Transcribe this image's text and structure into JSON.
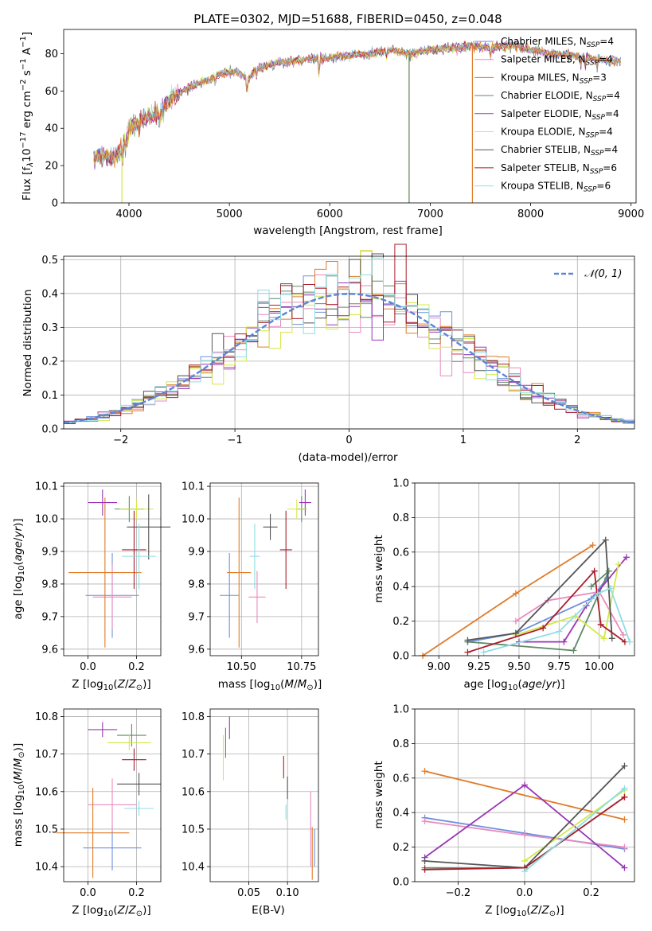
{
  "figure_title": "PLATE=0302, MJD=51688, FIBERID=0450, z=0.048",
  "model_colors": [
    "#6f8fdc",
    "#e98ac0",
    "#e07b28",
    "#5f8a6a",
    "#9a35b5",
    "#d4e84a",
    "#555555",
    "#aa1e2a",
    "#8fdde3"
  ],
  "chart_data": [
    {
      "type": "line",
      "name": "spectrum",
      "xlabel": "wavelength [Angstrom, rest frame]",
      "ylabel": "Flux [fλ10⁻¹⁷ erg cm⁻² s⁻¹ A⁻¹]",
      "xlim": [
        3350,
        9050
      ],
      "ylim": [
        0,
        93
      ],
      "xticks": [
        4000,
        5000,
        6000,
        7000,
        8000,
        9000
      ],
      "yticks": [
        0,
        20,
        40,
        60,
        80
      ],
      "grid": false,
      "legend_position": "right",
      "continuum": [
        [
          3650,
          24
        ],
        [
          3750,
          26
        ],
        [
          3850,
          24
        ],
        [
          3950,
          31
        ],
        [
          4000,
          40
        ],
        [
          4100,
          44
        ],
        [
          4200,
          46
        ],
        [
          4300,
          48
        ],
        [
          4400,
          55
        ],
        [
          4500,
          59
        ],
        [
          4600,
          62
        ],
        [
          4700,
          64
        ],
        [
          4800,
          66
        ],
        [
          4900,
          69
        ],
        [
          5000,
          70
        ],
        [
          5100,
          70
        ],
        [
          5200,
          66
        ],
        [
          5250,
          71
        ],
        [
          5400,
          74
        ],
        [
          5600,
          76
        ],
        [
          5800,
          77
        ],
        [
          6000,
          78
        ],
        [
          6200,
          79
        ],
        [
          6400,
          80
        ],
        [
          6600,
          82
        ],
        [
          6800,
          80
        ],
        [
          7000,
          82
        ],
        [
          7200,
          83
        ],
        [
          7400,
          84
        ],
        [
          7600,
          83
        ],
        [
          7800,
          85
        ],
        [
          8000,
          82
        ],
        [
          8200,
          80
        ],
        [
          8400,
          79
        ],
        [
          8600,
          78
        ],
        [
          8800,
          76
        ],
        [
          8900,
          76
        ]
      ],
      "absorption_lines": [
        [
          3934,
          8
        ],
        [
          3969,
          7
        ],
        [
          4102,
          5
        ],
        [
          4304,
          6
        ],
        [
          4341,
          4
        ],
        [
          4861,
          5
        ],
        [
          5175,
          10
        ],
        [
          5270,
          4
        ],
        [
          5894,
          11
        ],
        [
          6563,
          3
        ],
        [
          7600,
          4
        ],
        [
          8498,
          6
        ],
        [
          8542,
          7
        ],
        [
          8662,
          6
        ]
      ],
      "series": [
        {
          "name": "Chabrier MILES, N_SSP=4",
          "legend_main": "Chabrier MILES, N",
          "legend_sub": "SSP",
          "legend_tail": "=4"
        },
        {
          "name": "Salpeter MILES, N_SSP=4",
          "legend_main": "Salpeter MILES, N",
          "legend_sub": "SSP",
          "legend_tail": "=4"
        },
        {
          "name": "Kroupa MILES, N_SSP=3",
          "legend_main": "Kroupa MILES, N",
          "legend_sub": "SSP",
          "legend_tail": "=3"
        },
        {
          "name": "Chabrier ELODIE, N_SSP=4",
          "legend_main": "Chabrier ELODIE, N",
          "legend_sub": "SSP",
          "legend_tail": "=4"
        },
        {
          "name": "Salpeter ELODIE, N_SSP=4",
          "legend_main": "Salpeter ELODIE, N",
          "legend_sub": "SSP",
          "legend_tail": "=4"
        },
        {
          "name": "Kroupa ELODIE, N_SSP=4",
          "legend_main": "Kroupa ELODIE, N",
          "legend_sub": "SSP",
          "legend_tail": "=4"
        },
        {
          "name": "Chabrier STELIB, N_SSP=4",
          "legend_main": "Chabrier STELIB, N",
          "legend_sub": "SSP",
          "legend_tail": "=4"
        },
        {
          "name": "Salpeter STELIB, N_SSP=6",
          "legend_main": "Salpeter STELIB, N",
          "legend_sub": "SSP",
          "legend_tail": "=6"
        },
        {
          "name": "Kroupa STELIB, N_SSP=6",
          "legend_main": "Kroupa STELIB, N",
          "legend_sub": "SSP",
          "legend_tail": "=6"
        }
      ],
      "dropouts": [
        {
          "x": 3930,
          "color_index": 5
        },
        {
          "x": 6790,
          "color_index": 5
        },
        {
          "x": 7420,
          "color_index": 2
        },
        {
          "x": 6790,
          "color_index": 3
        }
      ]
    },
    {
      "type": "histogram",
      "name": "residuals",
      "xlabel": "(data-model)/error",
      "ylabel": "Normed distribution",
      "xlim": [
        -2.5,
        2.5
      ],
      "ylim": [
        0,
        0.51
      ],
      "xticks": [
        -2,
        -1,
        0,
        1,
        2
      ],
      "yticks": [
        0,
        0.1,
        0.2,
        0.3,
        0.4,
        0.5
      ],
      "grid": true,
      "legend": "𝒩(0, 1)",
      "legend_position": "top-right",
      "bin_width": 0.1,
      "reference": "normal(0,1)"
    },
    {
      "type": "scatter",
      "name": "age-vs-Z",
      "xlabel": "Z [log₁₀(Z/Z⊙)]",
      "ylabel": "age  [log₁₀(age/yr)]",
      "xlim": [
        -0.1,
        0.3
      ],
      "ylim": [
        9.58,
        10.11
      ],
      "xticks": [
        0.0,
        0.2
      ],
      "yticks": [
        9.6,
        9.7,
        9.8,
        9.9,
        10.0,
        10.1
      ],
      "grid": true,
      "points": [
        {
          "x": 0.1,
          "y": 9.765,
          "xerr": 0.11,
          "yerr": 0.13,
          "color_index": 0
        },
        {
          "x": 0.1,
          "y": 9.76,
          "xerr": 0.08,
          "yerr": 0.1,
          "color_index": 1
        },
        {
          "x": 0.07,
          "y": 9.835,
          "xerr": 0.15,
          "yerr": 0.23,
          "color_index": 2
        },
        {
          "x": 0.17,
          "y": 10.03,
          "xerr": 0.06,
          "yerr": 0.04,
          "color_index": 3
        },
        {
          "x": 0.06,
          "y": 10.05,
          "xerr": 0.06,
          "yerr": 0.04,
          "color_index": 4
        },
        {
          "x": 0.2,
          "y": 10.03,
          "xerr": 0.07,
          "yerr": 0.03,
          "color_index": 5
        },
        {
          "x": 0.25,
          "y": 9.975,
          "xerr": 0.09,
          "yerr": 0.1,
          "color_index": 6
        },
        {
          "x": 0.19,
          "y": 9.905,
          "xerr": 0.05,
          "yerr": 0.12,
          "color_index": 7
        },
        {
          "x": 0.21,
          "y": 9.885,
          "xerr": 0.07,
          "yerr": 0.1,
          "color_index": 8
        }
      ]
    },
    {
      "type": "scatter",
      "name": "age-vs-mass",
      "xlabel": "mass [log₁₀(M/M⊙)]",
      "ylabel": "",
      "xlim": [
        10.37,
        10.82
      ],
      "ylim": [
        9.58,
        10.11
      ],
      "xticks": [
        10.5,
        10.75
      ],
      "yticks": [
        9.6,
        9.7,
        9.8,
        9.9,
        10.0,
        10.1
      ],
      "grid": true,
      "points": [
        {
          "x": 10.45,
          "y": 9.765,
          "xerr": 0.04,
          "yerr": 0.13,
          "color_index": 0
        },
        {
          "x": 10.565,
          "y": 9.76,
          "xerr": 0.035,
          "yerr": 0.08,
          "color_index": 1
        },
        {
          "x": 10.49,
          "y": 9.835,
          "xerr": 0.05,
          "yerr": 0.23,
          "color_index": 2
        },
        {
          "x": 10.75,
          "y": 10.03,
          "xerr": 0.02,
          "yerr": 0.04,
          "color_index": 3
        },
        {
          "x": 10.765,
          "y": 10.05,
          "xerr": 0.025,
          "yerr": 0.04,
          "color_index": 4
        },
        {
          "x": 10.73,
          "y": 10.03,
          "xerr": 0.04,
          "yerr": 0.03,
          "color_index": 5
        },
        {
          "x": 10.62,
          "y": 9.975,
          "xerr": 0.03,
          "yerr": 0.04,
          "color_index": 6
        },
        {
          "x": 10.685,
          "y": 9.905,
          "xerr": 0.025,
          "yerr": 0.12,
          "color_index": 7
        },
        {
          "x": 10.555,
          "y": 9.885,
          "xerr": 0.02,
          "yerr": 0.1,
          "color_index": 8
        }
      ]
    },
    {
      "type": "line",
      "name": "mass-weight-vs-age",
      "xlabel": "age  [log₁₀(age/yr)]",
      "ylabel": "mass weight",
      "xlim": [
        8.85,
        10.22
      ],
      "ylim": [
        0,
        1
      ],
      "xticks": [
        9.0,
        9.25,
        9.5,
        9.75,
        10.0
      ],
      "yticks": [
        0,
        0.2,
        0.4,
        0.6,
        0.8,
        1.0
      ],
      "grid": true,
      "series": [
        {
          "color_index": 0,
          "points": [
            [
              9.18,
              0.08
            ],
            [
              9.48,
              0.13
            ],
            [
              9.95,
              0.33
            ],
            [
              10.05,
              0.45
            ]
          ]
        },
        {
          "color_index": 1,
          "points": [
            [
              9.48,
              0.2
            ],
            [
              9.68,
              0.32
            ],
            [
              10.0,
              0.37
            ],
            [
              10.15,
              0.12
            ]
          ]
        },
        {
          "color_index": 2,
          "points": [
            [
              8.9,
              0.0
            ],
            [
              9.48,
              0.36
            ],
            [
              9.96,
              0.64
            ]
          ]
        },
        {
          "color_index": 3,
          "points": [
            [
              9.18,
              0.08
            ],
            [
              9.84,
              0.03
            ],
            [
              10.06,
              0.49
            ],
            [
              9.95,
              0.4
            ]
          ]
        },
        {
          "color_index": 4,
          "points": [
            [
              9.5,
              0.08
            ],
            [
              9.78,
              0.08
            ],
            [
              9.92,
              0.29
            ],
            [
              10.17,
              0.57
            ]
          ]
        },
        {
          "color_index": 5,
          "points": [
            [
              9.48,
              0.12
            ],
            [
              9.85,
              0.23
            ],
            [
              10.03,
              0.1
            ],
            [
              10.12,
              0.53
            ]
          ]
        },
        {
          "color_index": 6,
          "points": [
            [
              9.18,
              0.09
            ],
            [
              9.48,
              0.13
            ],
            [
              10.04,
              0.67
            ],
            [
              10.08,
              0.1
            ]
          ]
        },
        {
          "color_index": 7,
          "points": [
            [
              9.18,
              0.02
            ],
            [
              9.65,
              0.16
            ],
            [
              9.97,
              0.49
            ],
            [
              10.01,
              0.18
            ],
            [
              10.16,
              0.08
            ]
          ]
        },
        {
          "color_index": 8,
          "points": [
            [
              9.28,
              0.02
            ],
            [
              9.75,
              0.14
            ],
            [
              9.99,
              0.36
            ],
            [
              10.07,
              0.39
            ],
            [
              10.19,
              0.08
            ]
          ]
        }
      ]
    },
    {
      "type": "scatter",
      "name": "mass-vs-Z",
      "xlabel": "Z [log₁₀(Z/Z⊙)]",
      "ylabel": "mass [log₁₀(M/M⊙)]",
      "xlim": [
        -0.1,
        0.3
      ],
      "ylim": [
        10.36,
        10.82
      ],
      "xticks": [
        0.0,
        0.2
      ],
      "yticks": [
        10.4,
        10.5,
        10.6,
        10.7,
        10.8
      ],
      "grid": true,
      "points": [
        {
          "x": 0.1,
          "y": 10.45,
          "xerr": 0.12,
          "yerr": 0.06,
          "color_index": 0
        },
        {
          "x": 0.1,
          "y": 10.565,
          "xerr": 0.1,
          "yerr": 0.07,
          "color_index": 1
        },
        {
          "x": 0.02,
          "y": 10.49,
          "xerr": 0.15,
          "yerr": 0.12,
          "color_index": 2
        },
        {
          "x": 0.18,
          "y": 10.75,
          "xerr": 0.06,
          "yerr": 0.03,
          "color_index": 3
        },
        {
          "x": 0.06,
          "y": 10.765,
          "xerr": 0.06,
          "yerr": 0.02,
          "color_index": 4
        },
        {
          "x": 0.17,
          "y": 10.73,
          "xerr": 0.09,
          "yerr": 0.02,
          "color_index": 5
        },
        {
          "x": 0.21,
          "y": 10.62,
          "xerr": 0.09,
          "yerr": 0.03,
          "color_index": 6
        },
        {
          "x": 0.19,
          "y": 10.685,
          "xerr": 0.05,
          "yerr": 0.03,
          "color_index": 7
        },
        {
          "x": 0.21,
          "y": 10.555,
          "xerr": 0.06,
          "yerr": 0.02,
          "color_index": 8
        }
      ]
    },
    {
      "type": "scatter",
      "name": "mass-vs-EBV",
      "xlabel": "E(B-V)",
      "ylabel": "",
      "xlim": [
        0.0,
        0.14
      ],
      "ylim": [
        10.36,
        10.82
      ],
      "xticks": [
        0.05,
        0.1
      ],
      "xticklabels": [
        "0.05",
        "0.10"
      ],
      "yticks": [
        10.4,
        10.5,
        10.6,
        10.7,
        10.8
      ],
      "grid": true,
      "points": [
        {
          "x": 0.135,
          "y": 10.45,
          "yerr": 0.05,
          "color_index": 0
        },
        {
          "x": 0.13,
          "y": 10.5,
          "yerr": 0.1,
          "color_index": 1
        },
        {
          "x": 0.132,
          "y": 10.435,
          "yerr": 0.07,
          "color_index": 2
        },
        {
          "x": 0.02,
          "y": 10.73,
          "yerr": 0.04,
          "color_index": 3
        },
        {
          "x": 0.025,
          "y": 10.77,
          "yerr": 0.03,
          "color_index": 4
        },
        {
          "x": 0.017,
          "y": 10.69,
          "yerr": 0.06,
          "color_index": 5
        },
        {
          "x": 0.1,
          "y": 10.61,
          "yerr": 0.03,
          "color_index": 6
        },
        {
          "x": 0.095,
          "y": 10.665,
          "yerr": 0.03,
          "color_index": 7
        },
        {
          "x": 0.098,
          "y": 10.545,
          "yerr": 0.02,
          "color_index": 8
        }
      ]
    },
    {
      "type": "line",
      "name": "mass-weight-vs-Z",
      "xlabel": "Z [log₁₀(Z/Z⊙)]",
      "ylabel": "mass weight",
      "xlim": [
        -0.33,
        0.33
      ],
      "ylim": [
        0,
        1
      ],
      "xticks": [
        -0.2,
        0.0,
        0.2
      ],
      "yticks": [
        0,
        0.2,
        0.4,
        0.6,
        0.8,
        1.0
      ],
      "grid": true,
      "series": [
        {
          "color_index": 0,
          "points": [
            [
              -0.3,
              0.37
            ],
            [
              0.0,
              0.28
            ],
            [
              0.3,
              0.19
            ]
          ]
        },
        {
          "color_index": 1,
          "points": [
            [
              -0.3,
              0.35
            ],
            [
              0.0,
              0.27
            ],
            [
              0.3,
              0.2
            ]
          ]
        },
        {
          "color_index": 2,
          "points": [
            [
              -0.3,
              0.64
            ],
            [
              0.3,
              0.36
            ]
          ]
        },
        {
          "color_index": 3,
          "points": [
            [
              -0.3,
              0.08
            ],
            [
              0.0,
              0.08
            ],
            [
              0.3,
              0.49
            ]
          ]
        },
        {
          "color_index": 4,
          "points": [
            [
              -0.3,
              0.14
            ],
            [
              0.0,
              0.56
            ],
            [
              0.3,
              0.08
            ]
          ]
        },
        {
          "color_index": 5,
          "points": [
            [
              0.0,
              0.12
            ],
            [
              0.3,
              0.53
            ]
          ]
        },
        {
          "color_index": 6,
          "points": [
            [
              -0.3,
              0.12
            ],
            [
              0.0,
              0.08
            ],
            [
              0.3,
              0.67
            ]
          ]
        },
        {
          "color_index": 7,
          "points": [
            [
              -0.3,
              0.07
            ],
            [
              0.0,
              0.08
            ],
            [
              0.3,
              0.49
            ]
          ]
        },
        {
          "color_index": 8,
          "points": [
            [
              0.0,
              0.06
            ],
            [
              0.3,
              0.54
            ]
          ]
        }
      ]
    }
  ]
}
